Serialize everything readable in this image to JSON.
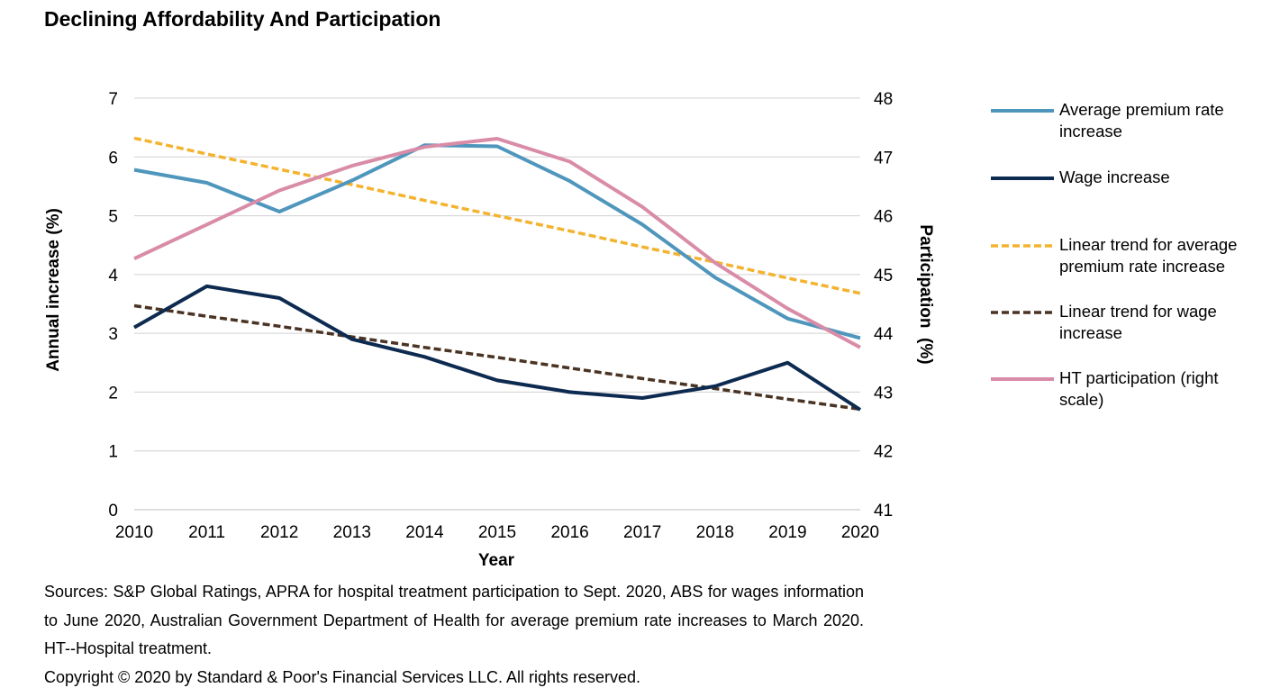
{
  "title": "Declining Affordability And Participation",
  "chart_data": {
    "type": "line",
    "title": "Declining Affordability And Participation",
    "xlabel": "Year",
    "ylabel": "Annual increase (%)",
    "y2label": "Participation  (%)",
    "x": [
      2010,
      2011,
      2012,
      2013,
      2014,
      2015,
      2016,
      2017,
      2018,
      2019,
      2020
    ],
    "ylim": [
      0,
      7
    ],
    "y2lim": [
      41,
      48
    ],
    "yticks": [
      "0",
      "1",
      "2",
      "3",
      "4",
      "5",
      "6",
      "7"
    ],
    "y2ticks": [
      "41",
      "42",
      "43",
      "44",
      "45",
      "46",
      "47",
      "48"
    ],
    "xticks": [
      "2010",
      "2011",
      "2012",
      "2013",
      "2014",
      "2015",
      "2016",
      "2017",
      "2018",
      "2019",
      "2020"
    ],
    "grid": true,
    "legend_position": "right",
    "series": [
      {
        "name": "Average premium rate increase",
        "axis": "left",
        "style": "solid",
        "color": "#4f96bd",
        "values": [
          5.78,
          5.56,
          5.07,
          5.6,
          6.2,
          6.18,
          5.59,
          4.85,
          3.95,
          3.25,
          2.92
        ]
      },
      {
        "name": "Wage increase",
        "axis": "left",
        "style": "solid",
        "color": "#0d2a50",
        "values": [
          3.1,
          3.8,
          3.6,
          2.9,
          2.6,
          2.2,
          2.0,
          1.9,
          2.1,
          2.5,
          1.7
        ]
      },
      {
        "name": "Linear trend for average premium rate increase",
        "axis": "left",
        "style": "dashed",
        "color": "#f4b32f",
        "values": [
          6.32,
          6.05,
          5.79,
          5.53,
          5.26,
          5.0,
          4.74,
          4.47,
          4.21,
          3.94,
          3.68
        ]
      },
      {
        "name": "Linear trend for wage increase",
        "axis": "left",
        "style": "dashed",
        "color": "#4a3323",
        "values": [
          3.47,
          3.29,
          3.12,
          2.94,
          2.76,
          2.59,
          2.41,
          2.23,
          2.06,
          1.88,
          1.71
        ]
      },
      {
        "name": "HT participation (right scale)",
        "axis": "right",
        "style": "solid",
        "color": "#d98ca8",
        "values": [
          45.27,
          45.85,
          46.43,
          46.85,
          47.17,
          47.31,
          46.92,
          46.15,
          45.2,
          44.42,
          43.76
        ]
      }
    ],
    "legend": [
      {
        "lines": [
          "Average premium rate",
          "increase"
        ]
      },
      {
        "lines": [
          "Wage increase"
        ]
      },
      {
        "lines": [
          "Linear trend for average",
          "premium rate increase"
        ]
      },
      {
        "lines": [
          "Linear trend for wage",
          "increase"
        ]
      },
      {
        "lines": [
          "HT participation (right",
          "scale)"
        ]
      }
    ]
  },
  "notes": {
    "sources": "Sources: S&P Global Ratings, APRA for hospital treatment participation to Sept. 2020, ABS for wages information to June 2020, Australian Government Department of Health for average premium rate increases to March 2020. HT--Hospital treatment.",
    "copyright": "Copyright © 2020 by Standard & Poor's Financial Services LLC. All rights reserved."
  }
}
